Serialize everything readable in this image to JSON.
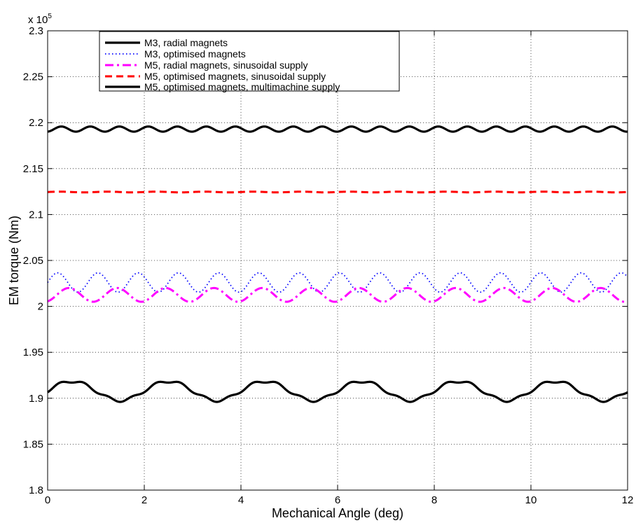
{
  "chart_data": {
    "type": "line",
    "title": "",
    "xlabel": "Mechanical Angle (deg)",
    "ylabel": "EM torque (Nm)",
    "xlim": [
      0,
      12
    ],
    "ylim": [
      180000,
      230000
    ],
    "x_ticks": [
      0,
      2,
      4,
      6,
      8,
      10,
      12
    ],
    "y_ticks": [
      1.8,
      1.85,
      1.9,
      1.95,
      2,
      2.05,
      2.1,
      2.15,
      2.2,
      2.25,
      2.3
    ],
    "y_tick_labels": [
      "1.8",
      "1.85",
      "1.9",
      "1.95",
      "2",
      "2.05",
      "2.1",
      "2.15",
      "2.2",
      "2.25",
      "2.3"
    ],
    "y_exponent_prefix": "x 10",
    "y_exponent_power": "5",
    "grid": true,
    "legend_position": "top-left",
    "series": [
      {
        "name": "M3, radial magnets",
        "color": "#000000",
        "style": "solid",
        "description_values": {
          "mean": 190800,
          "amplitude": 1050,
          "period_deg": 2,
          "phase_deg": 0
        }
      },
      {
        "name": "M3, optimised magnets",
        "color": "#0000ff",
        "style": "dotted",
        "description_values": {
          "mean": 202600,
          "amplitude": 1050,
          "period_deg": 0.833,
          "min": 201500,
          "max": 203700
        }
      },
      {
        "name": "M5, radial magnets, sinusoidal supply",
        "color": "#ff00ff",
        "style": "dash-dot",
        "description_values": {
          "mean": 201250,
          "amplitude": 750,
          "period_deg": 1.0,
          "min": 200500,
          "max": 202000
        }
      },
      {
        "name": "M5, optimised magnets, sinusoidal supply",
        "color": "#ff0000",
        "style": "dashed",
        "description_values": {
          "mean": 212450,
          "amplitude": 40,
          "period_deg": 1.0
        }
      },
      {
        "name": "M5, optimised magnets, multimachine supply",
        "color": "#000000",
        "style": "solid",
        "description_values": {
          "mean": 219300,
          "amplitude": 280,
          "period_deg": 0.6,
          "min": 219000,
          "max": 219600
        }
      }
    ]
  }
}
